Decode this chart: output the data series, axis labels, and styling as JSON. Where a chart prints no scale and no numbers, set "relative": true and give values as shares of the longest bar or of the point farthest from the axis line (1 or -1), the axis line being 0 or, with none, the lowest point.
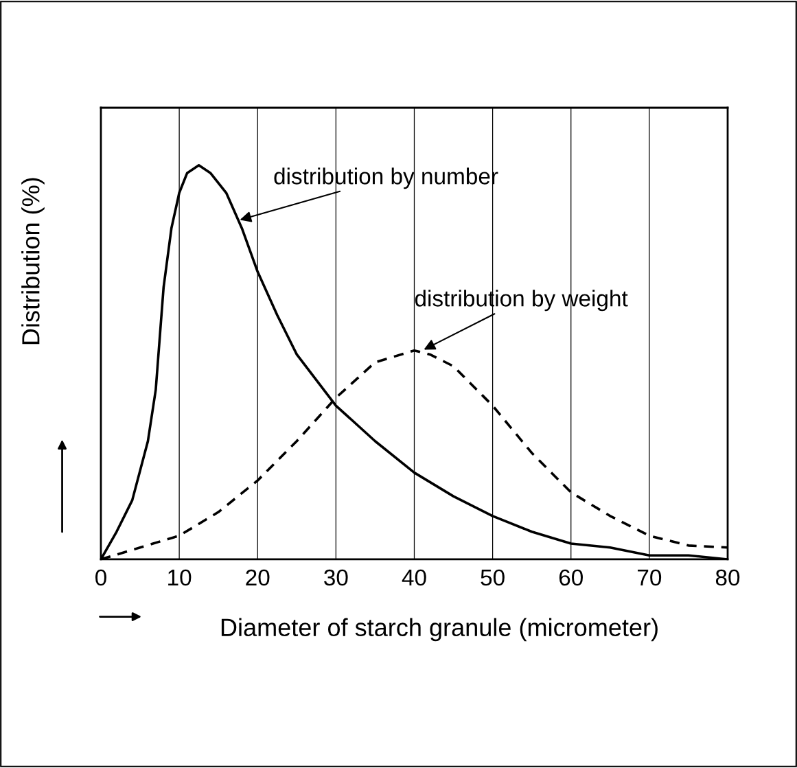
{
  "chart_data": {
    "type": "line",
    "relative": true,
    "xlabel": "Diameter of starch granule (micrometer)",
    "ylabel": "Distribution (%)",
    "xlim": [
      0,
      80
    ],
    "xticks": [
      0,
      10,
      20,
      30,
      40,
      50,
      60,
      70,
      80
    ],
    "grid": "x",
    "legend": false,
    "marker": "none",
    "series": [
      {
        "color": "#000000",
        "line_style": "solid",
        "x": [
          0,
          2,
          4,
          6,
          7,
          8,
          9,
          10,
          11,
          12.5,
          14,
          16,
          18,
          20,
          22.5,
          25,
          30,
          35,
          40,
          45,
          50,
          55,
          60,
          65,
          70,
          75,
          80
        ],
        "values": [
          0,
          0.07,
          0.15,
          0.3,
          0.43,
          0.69,
          0.84,
          0.93,
          0.98,
          1.0,
          0.98,
          0.93,
          0.84,
          0.73,
          0.62,
          0.52,
          0.39,
          0.3,
          0.22,
          0.16,
          0.11,
          0.07,
          0.04,
          0.03,
          0.01,
          0.01,
          0
        ]
      },
      {
        "color": "#000000",
        "line_style": "dashed",
        "x": [
          0,
          5,
          10,
          15,
          20,
          25,
          30,
          35,
          40,
          42,
          45,
          50,
          55,
          60,
          65,
          70,
          75,
          80
        ],
        "values": [
          0,
          0.03,
          0.06,
          0.12,
          0.2,
          0.3,
          0.41,
          0.5,
          0.53,
          0.52,
          0.49,
          0.39,
          0.27,
          0.17,
          0.11,
          0.06,
          0.035,
          0.03
        ]
      }
    ],
    "annotations": [
      {
        "text": "distribution by number",
        "x": 17.5,
        "y": 0.86
      },
      {
        "text": "distribution by weight",
        "x": 41,
        "y": 0.53
      }
    ]
  }
}
